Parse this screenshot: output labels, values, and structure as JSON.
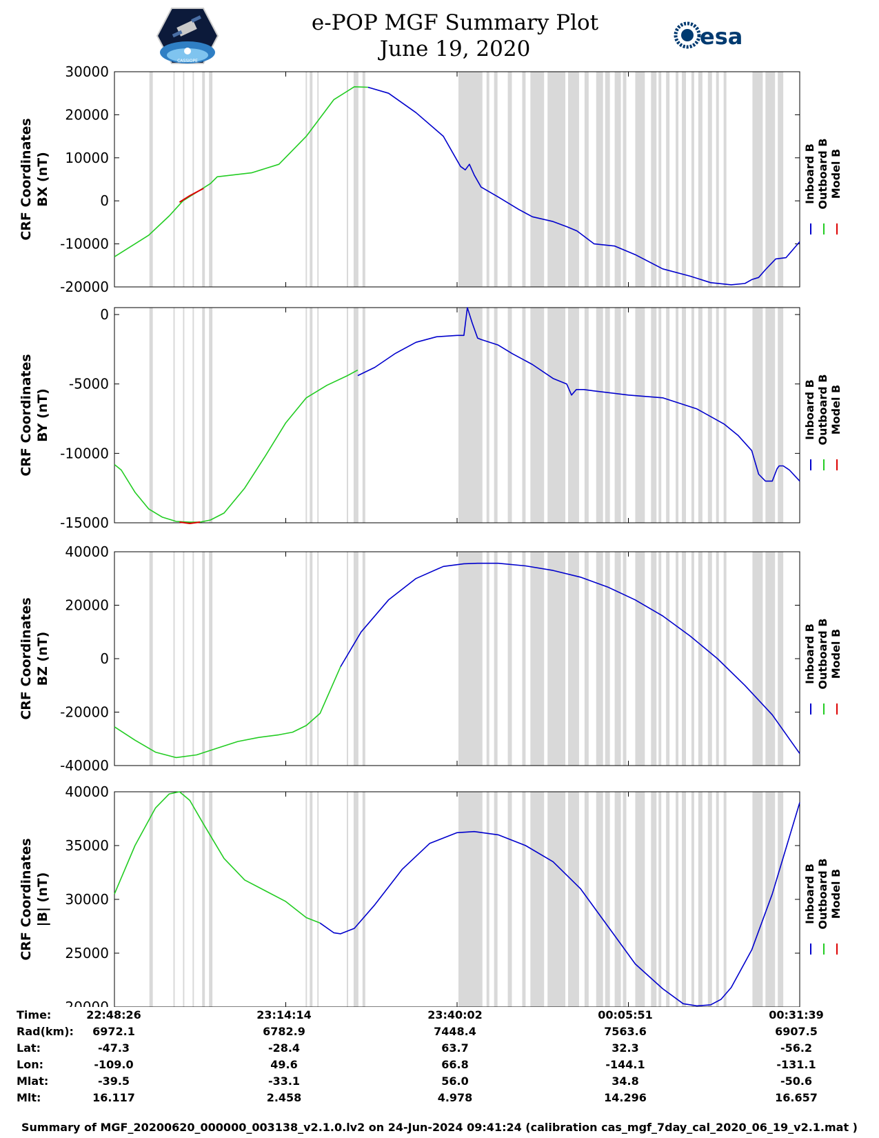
{
  "header": {
    "title_line1": "e-POP MGF Summary Plot",
    "title_line2": "June 19, 2020",
    "left_logo_text": "CASSIOPE",
    "right_logo_text": "esa"
  },
  "chart_data": {
    "type": "line",
    "x_range": [
      0,
      100
    ],
    "x_ticks": [
      0,
      25,
      50,
      75,
      100
    ],
    "colors": {
      "inboard": "#0000cc",
      "outboard": "#22cc22",
      "model": "#dd0000",
      "gap": "#d9d9d9"
    },
    "legend": [
      "Inboard B",
      "Outboard B",
      "Model B"
    ],
    "legend_placement": "right",
    "gaps": [
      [
        5.1,
        5.6
      ],
      [
        8.6,
        8.8
      ],
      [
        10,
        10.2
      ],
      [
        11.4,
        11.6
      ],
      [
        12.8,
        13.2
      ],
      [
        13.8,
        14.3
      ],
      [
        27.9,
        28.1
      ],
      [
        28.5,
        28.9
      ],
      [
        29.6,
        29.8
      ],
      [
        33.9,
        34.1
      ],
      [
        34.9,
        35.6
      ],
      [
        36.2,
        36.6
      ],
      [
        50.2,
        53.7
      ],
      [
        54.3,
        54.7
      ],
      [
        55.4,
        55.9
      ],
      [
        57.4,
        58
      ],
      [
        59.5,
        60
      ],
      [
        60.7,
        62.7
      ],
      [
        63.2,
        65.8
      ],
      [
        66.2,
        67.8
      ],
      [
        68.6,
        69.2
      ],
      [
        70.3,
        71.3
      ],
      [
        71.6,
        72.3
      ],
      [
        73,
        73.9
      ],
      [
        74.2,
        74.7
      ],
      [
        76,
        77.4
      ],
      [
        78.3,
        79.1
      ],
      [
        79.4,
        79.8
      ],
      [
        80.5,
        81
      ],
      [
        81.9,
        82.3
      ],
      [
        82.8,
        83.4
      ],
      [
        84.2,
        84.6
      ],
      [
        85.2,
        85.8
      ],
      [
        86.6,
        87.2
      ],
      [
        87.8,
        88.2
      ],
      [
        88.9,
        89.3
      ],
      [
        93.1,
        94.6
      ],
      [
        95,
        96.4
      ],
      [
        96.8,
        97.6
      ]
    ],
    "panels": [
      {
        "id": "bx",
        "ylabel_line1": "CRF Coordinates",
        "ylabel_line2": "BX (nT)",
        "ylim": [
          -20000,
          30000
        ],
        "y_ticks": [
          -20000,
          -10000,
          0,
          10000,
          20000,
          30000
        ],
        "y_tick_labels": [
          "-20000",
          "-10000",
          "0",
          "10000",
          "20000",
          "30000"
        ],
        "series": [
          {
            "name": "Outboard B",
            "color": "outboard",
            "x": [
              0,
              5,
              8,
              10,
              12.5,
              14,
              15,
              20,
              24,
              28,
              32,
              35,
              37
            ],
            "y": [
              -13000,
              -8000,
              -3500,
              0,
              2500,
              4000,
              5600,
              6500,
              8500,
              15000,
              23500,
              26500,
              26400
            ]
          },
          {
            "name": "Model B",
            "color": "model",
            "x": [
              9.5,
              11,
              13
            ],
            "y": [
              -300,
              1200,
              2900
            ]
          },
          {
            "name": "Inboard B",
            "color": "inboard",
            "x": [
              37,
              40,
              44,
              48,
              50.5,
              51.2,
              51.8,
              52.5,
              53.5,
              56,
              59,
              61,
              64,
              66,
              67.5,
              70,
              73,
              76,
              80,
              84,
              87,
              90,
              92,
              93,
              94,
              95,
              96.5,
              98,
              100
            ],
            "y": [
              26400,
              25000,
              20500,
              15000,
              8000,
              7200,
              8500,
              6000,
              3200,
              900,
              -2000,
              -3700,
              -4800,
              -6000,
              -7000,
              -10000,
              -10500,
              -12500,
              -15800,
              -17500,
              -19000,
              -19500,
              -19200,
              -18300,
              -17800,
              -16000,
              -13500,
              -13200,
              -9500
            ]
          }
        ]
      },
      {
        "id": "by",
        "ylabel_line1": "CRF Coordinates",
        "ylabel_line2": "BY (nT)",
        "ylim": [
          -15000,
          500
        ],
        "y_ticks": [
          -15000,
          -10000,
          -5000,
          0
        ],
        "y_tick_labels": [
          "-15000",
          "-10000",
          "-5000",
          "0"
        ],
        "series": [
          {
            "name": "Outboard B",
            "color": "outboard",
            "x": [
              0,
              1,
              3,
              5,
              7,
              9,
              11,
              12.5,
              14,
              16,
              19,
              22,
              25,
              28,
              31,
              34,
              35.5
            ],
            "y": [
              -10800,
              -11200,
              -12800,
              -14000,
              -14600,
              -14900,
              -14950,
              -14950,
              -14800,
              -14300,
              -12500,
              -10200,
              -7800,
              -6000,
              -5100,
              -4400,
              -4000
            ]
          },
          {
            "name": "Model B",
            "color": "model",
            "x": [
              9.5,
              11,
              12.5
            ],
            "y": [
              -14950,
              -15050,
              -14950
            ]
          },
          {
            "name": "Inboard B",
            "color": "inboard",
            "x": [
              35.5,
              38,
              41,
              44,
              47,
              50,
              51,
              51.5,
              52.2,
              53,
              53.5,
              56,
              58,
              61,
              64,
              66,
              66.7,
              67.4,
              68.5,
              70,
              75,
              80,
              85,
              89,
              91,
              93,
              94,
              95,
              96,
              96.7,
              97,
              97.6,
              98.5,
              100
            ],
            "y": [
              -4400,
              -3800,
              -2800,
              -2000,
              -1600,
              -1500,
              -1500,
              500,
              -600,
              -1700,
              -1800,
              -2200,
              -2800,
              -3600,
              -4600,
              -5000,
              -5800,
              -5400,
              -5400,
              -5500,
              -5800,
              -6000,
              -6800,
              -7900,
              -8700,
              -9800,
              -11500,
              -12000,
              -12000,
              -11100,
              -10900,
              -10900,
              -11200,
              -12000
            ]
          }
        ]
      },
      {
        "id": "bz",
        "ylabel_line1": "CRF Coordinates",
        "ylabel_line2": "BZ (nT)",
        "ylim": [
          -40000,
          40000
        ],
        "y_ticks": [
          -40000,
          -20000,
          0,
          20000,
          40000
        ],
        "y_tick_labels": [
          "-40000",
          "-20000",
          "0",
          "20000",
          "40000"
        ],
        "series": [
          {
            "name": "Outboard B",
            "color": "outboard",
            "x": [
              0,
              3,
              6,
              9,
              12,
              15,
              18,
              21,
              24,
              26,
              28,
              30,
              33
            ],
            "y": [
              -25500,
              -30500,
              -35000,
              -37000,
              -36000,
              -33500,
              -31000,
              -29500,
              -28500,
              -27500,
              -25000,
              -20500,
              -3000
            ]
          },
          {
            "name": "Inboard B",
            "color": "inboard",
            "x": [
              33,
              36,
              40,
              44,
              48,
              51,
              53,
              56,
              60,
              64,
              68,
              72,
              76,
              80,
              84,
              88,
              92,
              96,
              100
            ],
            "y": [
              -3000,
              10000,
              22000,
              30000,
              34500,
              35500,
              35700,
              35700,
              34700,
              33000,
              30500,
              26800,
              22000,
              16000,
              8500,
              0,
              -10000,
              -21000,
              -35500
            ]
          }
        ]
      },
      {
        "id": "bmag",
        "ylabel_line1": "CRF Coordinates",
        "ylabel_line2": "|B| (nT)",
        "ylim": [
          20000,
          40000
        ],
        "y_ticks": [
          20000,
          25000,
          30000,
          35000,
          40000
        ],
        "y_tick_labels": [
          "20000",
          "25000",
          "30000",
          "35000",
          "40000"
        ],
        "series": [
          {
            "name": "Outboard B",
            "color": "outboard",
            "x": [
              0,
              3,
              6,
              8,
              9.5,
              11,
              13,
              16,
              19,
              22,
              25,
              28,
              30
            ],
            "y": [
              30500,
              35000,
              38500,
              39800,
              40000,
              39200,
              37000,
              33800,
              31800,
              30800,
              29800,
              28300,
              27800
            ]
          },
          {
            "name": "Inboard B",
            "color": "inboard",
            "x": [
              30,
              32,
              33,
              35,
              38,
              42,
              46,
              50,
              52.5,
              56,
              60,
              64,
              68,
              72,
              76,
              80,
              83,
              85,
              87,
              88.5,
              90,
              93,
              96,
              100
            ],
            "y": [
              27800,
              26900,
              26800,
              27300,
              29500,
              32800,
              35200,
              36200,
              36300,
              36000,
              35000,
              33500,
              31000,
              27500,
              24000,
              21700,
              20300,
              20100,
              20200,
              20700,
              21800,
              25300,
              30500,
              39000
            ]
          }
        ]
      }
    ]
  },
  "info_table": {
    "row_labels": [
      "Time:",
      "Rad(km):",
      "Lat:",
      "Lon:",
      "Mlat:",
      "Mlt:"
    ],
    "columns": [
      [
        "22:48:26",
        "6972.1",
        "-47.3",
        "-109.0",
        "-39.5",
        "16.117"
      ],
      [
        "23:14:14",
        "6782.9",
        "-28.4",
        "49.6",
        "-33.1",
        "2.458"
      ],
      [
        "23:40:02",
        "7448.4",
        "63.7",
        "66.8",
        "56.0",
        "4.978"
      ],
      [
        "00:05:51",
        "7563.6",
        "32.3",
        "-144.1",
        "34.8",
        "14.296"
      ],
      [
        "00:31:39",
        "6907.5",
        "-56.2",
        "-131.1",
        "-50.6",
        "16.657"
      ]
    ]
  },
  "footer": "Summary of MGF_20200620_000000_003138_v2.1.0.lv2 on 24-Jun-2024 09:41:24 (calibration cas_mgf_7day_cal_2020_06_19_v2.1.mat )"
}
